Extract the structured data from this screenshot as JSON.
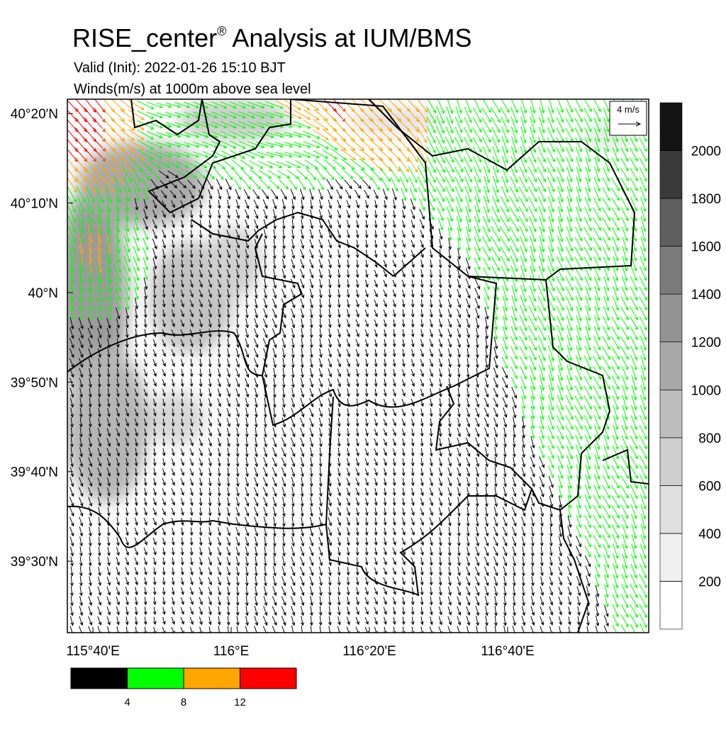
{
  "header": {
    "title": "RISE_center",
    "title_mark": "®",
    "title_rest": "Analysis at IUM/BMS",
    "subtitle": "Valid (Init): 2022-01-26 15:10 BJT",
    "subtitle2": "Winds(m/s) at 1000m above sea level"
  },
  "map": {
    "lonlim": [
      115.605,
      117.007
    ],
    "latlim": [
      39.367,
      40.36
    ],
    "lonticks": [
      {
        "value": 115.6667,
        "label": "115°40'E"
      },
      {
        "value": 116,
        "label": "116°E"
      },
      {
        "value": 116.3333,
        "label": "116°20'E"
      },
      {
        "value": 116.6667,
        "label": "116°40'E"
      }
    ],
    "latticks": [
      {
        "value": 40.3333,
        "label": "40°20'N"
      },
      {
        "value": 40.1667,
        "label": "40°10'N"
      },
      {
        "value": 40,
        "label": "40°N"
      },
      {
        "value": 39.8333,
        "label": "39°50'N"
      },
      {
        "value": 39.6667,
        "label": "39°40'N"
      },
      {
        "value": 39.5,
        "label": "39°30'N"
      }
    ],
    "reference_vector": "4 m/s"
  },
  "colorbar": {
    "range": [
      0,
      2200
    ],
    "levels": [
      200,
      400,
      600,
      800,
      1000,
      1200,
      1400,
      1600,
      1800,
      2000
    ],
    "colors": [
      "#ffffff",
      "#f0f0f0",
      "#e0e0e0",
      "#cfcfcf",
      "#bdbdbd",
      "#a8a8a8",
      "#939393",
      "#7b7b7b",
      "#5f5f5f",
      "#3a3a3a",
      "#141414"
    ]
  },
  "speed_legend": {
    "breaks": [
      4,
      8,
      12
    ],
    "colors": [
      "#000000",
      "#00ff00",
      "#ffa500",
      "#ff0000"
    ]
  }
}
